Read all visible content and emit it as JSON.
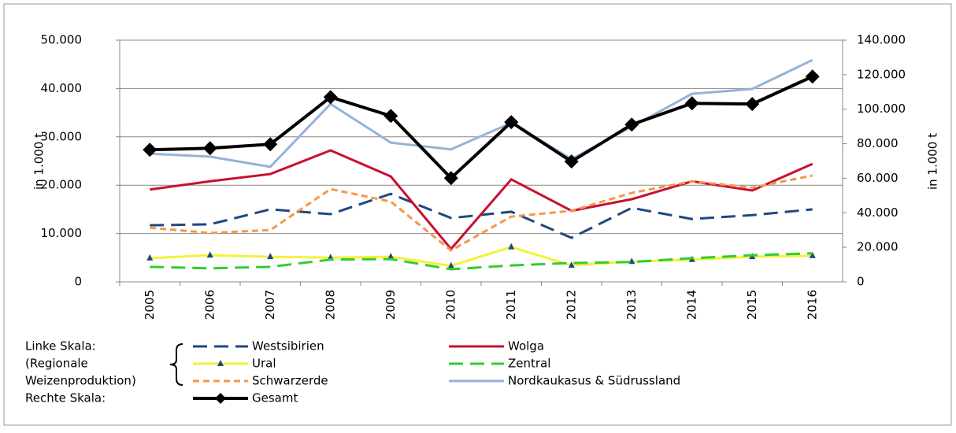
{
  "chart_data": {
    "type": "line",
    "categories": [
      "2005",
      "2006",
      "2007",
      "2008",
      "2009",
      "2010",
      "2011",
      "2012",
      "2013",
      "2014",
      "2015",
      "2016"
    ],
    "ylabel": "in 1.000 t",
    "y2label": "in 1.000 t",
    "ylim": [
      0,
      50000
    ],
    "yticks": [
      0,
      {
        "value": 10000,
        "label": "10.000"
      },
      {
        "value": 20000,
        "label": "20.000"
      },
      {
        "value": 30000,
        "label": "30.000"
      },
      {
        "value": 40000,
        "label": "40.000"
      },
      {
        "value": 50000,
        "label": "50.000"
      }
    ],
    "y2lim": [
      0,
      140000
    ],
    "y2ticks": [
      0,
      {
        "value": 20000,
        "label": "20.000"
      },
      {
        "value": 40000,
        "label": "40.000"
      },
      {
        "value": 60000,
        "label": "60.000"
      },
      {
        "value": 80000,
        "label": "80.000"
      },
      {
        "value": 100000,
        "label": "100.000"
      },
      {
        "value": 120000,
        "label": "120.000"
      },
      {
        "value": 140000,
        "label": "140.000"
      }
    ],
    "grid": true,
    "legend_notes": [
      "Linke Skala:",
      "(Regionale",
      "Weizenproduktion)",
      "Rechte Skala:"
    ],
    "series": [
      {
        "name": "Westsibirien",
        "color": "#1f497d",
        "style": "dashed",
        "values": [
          11700,
          11900,
          15000,
          14000,
          18200,
          13200,
          14500,
          9100,
          15300,
          13000,
          13800,
          15000
        ]
      },
      {
        "name": "Wolga",
        "color": "#c8102e",
        "style": "solid",
        "values": [
          19100,
          20800,
          22300,
          27200,
          21800,
          6800,
          21200,
          14700,
          17100,
          20800,
          18900,
          24400
        ]
      },
      {
        "name": "Ural",
        "color": "#f2f23a",
        "style": "solid",
        "marker": "triangle",
        "values": [
          4900,
          5500,
          5200,
          5000,
          5200,
          3300,
          7200,
          3400,
          4200,
          4600,
          5200,
          5400
        ]
      },
      {
        "name": "Zentral",
        "color": "#33cc33",
        "style": "dashed",
        "values": [
          3100,
          2800,
          3100,
          4600,
          4700,
          2600,
          3400,
          3900,
          4100,
          4900,
          5500,
          5900
        ]
      },
      {
        "name": "Schwarzerde",
        "color": "#f79646",
        "style": "dotted",
        "values": [
          11200,
          10100,
          10700,
          19200,
          16600,
          6500,
          13500,
          14700,
          18400,
          20800,
          19500,
          22000
        ]
      },
      {
        "name": "Nordkaukasus & Südrussland",
        "color": "#95b3d7",
        "style": "solid",
        "values": [
          26500,
          25900,
          23800,
          36800,
          28800,
          27400,
          32900,
          25400,
          32100,
          38900,
          39900,
          45900
        ]
      },
      {
        "name": "Gesamt",
        "color": "#000000",
        "style": "solid",
        "marker": "diamond",
        "axis": "y2",
        "values": [
          76500,
          77400,
          79700,
          107000,
          96100,
          60100,
          92500,
          69700,
          91100,
          103400,
          103000,
          118900
        ]
      }
    ]
  }
}
